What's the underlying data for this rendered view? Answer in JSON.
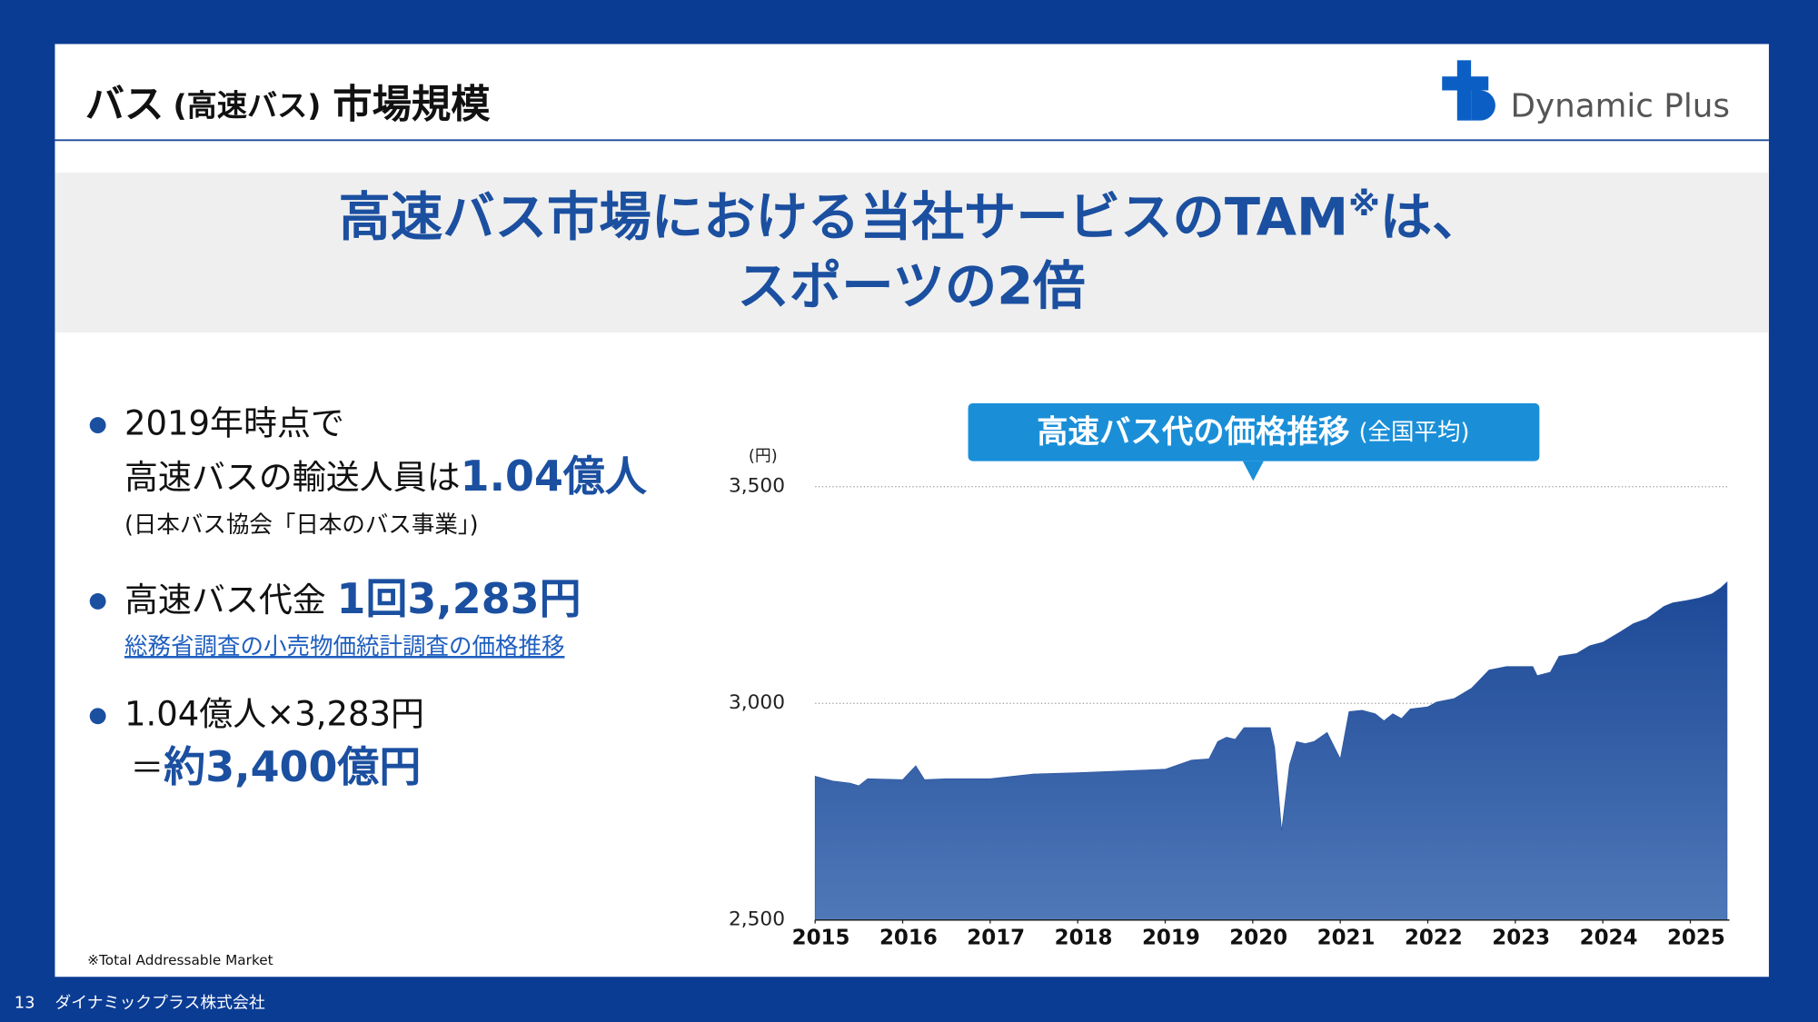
{
  "header": {
    "title": [
      "バス",
      "(高速バス)",
      "市場規模"
    ],
    "logo": "Dynamic Plus"
  },
  "headline": {
    "line1": "高速バス市場における当社サービスのTAM",
    "mark": "※",
    "line1_end": "は、",
    "line2": "スポーツの2倍"
  },
  "bullets": [
    {
      "lines": [
        [
          "2019年時点で"
        ],
        [
          "高速バスの輸送人員は",
          "1.04億人"
        ],
        [
          "(日本バス協会「日本のバス事業」)"
        ]
      ]
    },
    {
      "lines": [
        [
          "高速バス代金 ",
          "1回3,283円"
        ],
        [
          "総務省調査の小売物価統計調査の価格推移"
        ]
      ]
    },
    {
      "lines": [
        [
          "1.04億人×3,283円"
        ],
        [
          "＝",
          "約3,400億円"
        ]
      ]
    }
  ],
  "footnote": "※Total Addressable Market",
  "footer": {
    "page": "13",
    "company": "ダイナミックプラス株式会社"
  },
  "chart_data": {
    "type": "area",
    "title": "高速バス代の価格推移",
    "subtitle": "(全国平均)",
    "y_label": "(円)",
    "color": "#2a55a0",
    "x": [
      2015.0,
      2015.2,
      2015.4,
      2015.5,
      2015.6,
      2016.0,
      2016.15,
      2016.25,
      2016.5,
      2017.0,
      2017.5,
      2018.0,
      2019.0,
      2019.3,
      2019.5,
      2019.6,
      2019.7,
      2019.8,
      2019.9,
      2020.0,
      2020.2,
      2020.25,
      2020.33,
      2020.42,
      2020.5,
      2020.6,
      2020.7,
      2020.85,
      2021.0,
      2021.1,
      2021.25,
      2021.4,
      2021.5,
      2021.6,
      2021.7,
      2021.8,
      2022.0,
      2022.1,
      2022.3,
      2022.5,
      2022.7,
      2022.9,
      2023.0,
      2023.2,
      2023.25,
      2023.4,
      2023.5,
      2023.7,
      2023.85,
      2024.0,
      2024.2,
      2024.35,
      2024.5,
      2024.7,
      2024.8,
      2024.95,
      2025.1,
      2025.25,
      2025.35,
      2025.42
    ],
    "values": [
      2832,
      2821,
      2816,
      2810,
      2826,
      2824,
      2856,
      2824,
      2826,
      2826,
      2837,
      2840,
      2848,
      2869,
      2872,
      2912,
      2922,
      2917,
      2944,
      2944,
      2944,
      2899,
      2706,
      2858,
      2912,
      2907,
      2912,
      2933,
      2872,
      2981,
      2984,
      2976,
      2960,
      2976,
      2965,
      2987,
      2992,
      3003,
      3011,
      3035,
      3077,
      3085,
      3085,
      3085,
      3064,
      3072,
      3109,
      3115,
      3133,
      3141,
      3165,
      3184,
      3195,
      3224,
      3232,
      3237,
      3243,
      3253,
      3267,
      3280
    ],
    "xlim": [
      2015,
      2025.5
    ],
    "xticks": [
      2015,
      2016,
      2017,
      2018,
      2019,
      2020,
      2021,
      2022,
      2023,
      2024,
      2025
    ],
    "ylim": [
      2500,
      3500
    ],
    "yticks": [
      {
        "value": 2500,
        "label": "2,500"
      },
      {
        "value": 3000,
        "label": "3,000"
      },
      {
        "value": 3500,
        "label": "3,500"
      }
    ],
    "grid": true
  }
}
